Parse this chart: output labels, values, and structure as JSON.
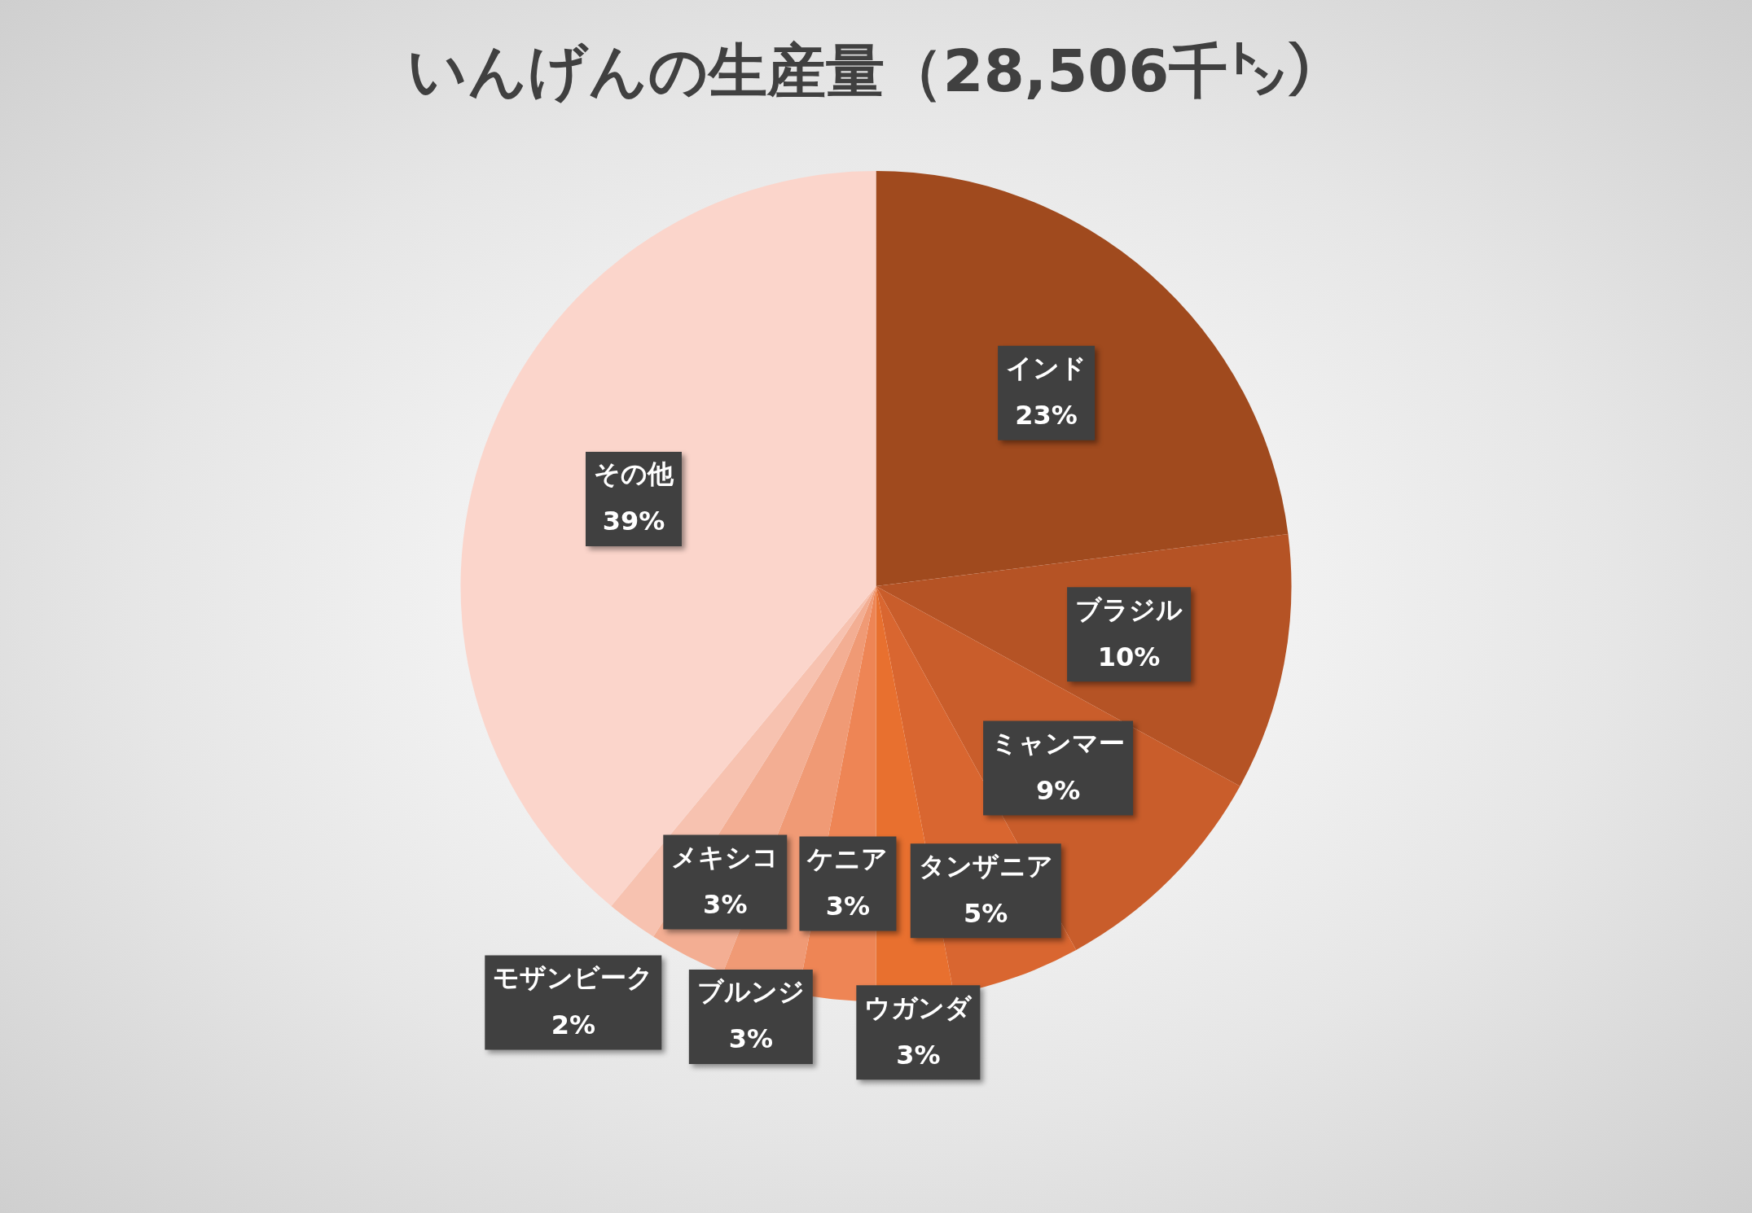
{
  "chart_data": {
    "type": "pie",
    "title": "いんげんの生産量（28,506千㌧）",
    "categories": [
      "インド",
      "ブラジル",
      "ミャンマー",
      "タンザニア",
      "ウガンダ",
      "ケニア",
      "ブルンジ",
      "メキシコ",
      "モザンビーク",
      "その他"
    ],
    "values": [
      23,
      10,
      9,
      5,
      3,
      3,
      3,
      3,
      2,
      39
    ],
    "colors": [
      "#a04a1e",
      "#b55325",
      "#c95d2b",
      "#d96630",
      "#e8702f",
      "#ee8555",
      "#f09a75",
      "#f3ae93",
      "#f7c2b0",
      "#fbd5cb"
    ],
    "value_labels": [
      "23%",
      "10%",
      "9%",
      "5%",
      "3%",
      "3%",
      "3%",
      "3%",
      "2%",
      "39%"
    ],
    "legend": false
  }
}
